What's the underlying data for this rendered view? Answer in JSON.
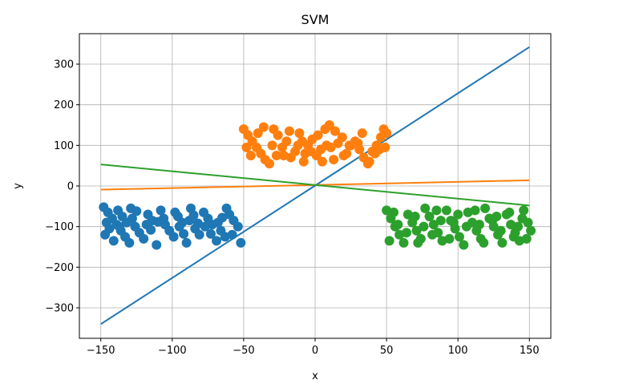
{
  "chart_data": {
    "type": "scatter",
    "title": "SVM",
    "xlabel": "x",
    "ylabel": "y",
    "xlim": [
      -165,
      165
    ],
    "ylim": [
      -375,
      375
    ],
    "x_ticks": [
      -150,
      -100,
      -50,
      0,
      50,
      100,
      150
    ],
    "y_ticks": [
      -300,
      -200,
      -100,
      0,
      100,
      200,
      300
    ],
    "x_tick_labels": [
      "−150",
      "−100",
      "−50",
      "0",
      "50",
      "100",
      "150"
    ],
    "y_tick_labels": [
      "−300",
      "−200",
      "−100",
      "0",
      "100",
      "200",
      "300"
    ],
    "grid": true,
    "colors": [
      "#1f77b4",
      "#ff7f0e",
      "#2ca02c"
    ],
    "scatter_series": [
      {
        "color": "#1f77b4",
        "points": [
          [
            -148,
            -52
          ],
          [
            -145,
            -65
          ],
          [
            -142,
            -80
          ],
          [
            -139,
            -95
          ],
          [
            -136,
            -110
          ],
          [
            -133,
            -125
          ],
          [
            -130,
            -140
          ],
          [
            -147,
            -120
          ],
          [
            -144,
            -105
          ],
          [
            -141,
            -135
          ],
          [
            -138,
            -60
          ],
          [
            -135,
            -75
          ],
          [
            -132,
            -90
          ],
          [
            -129,
            -55
          ],
          [
            -126,
            -100
          ],
          [
            -123,
            -115
          ],
          [
            -120,
            -130
          ],
          [
            -117,
            -70
          ],
          [
            -114,
            -85
          ],
          [
            -111,
            -145
          ],
          [
            -108,
            -60
          ],
          [
            -105,
            -95
          ],
          [
            -102,
            -110
          ],
          [
            -99,
            -125
          ],
          [
            -96,
            -75
          ],
          [
            -93,
            -90
          ],
          [
            -90,
            -140
          ],
          [
            -87,
            -55
          ],
          [
            -84,
            -105
          ],
          [
            -81,
            -120
          ],
          [
            -78,
            -65
          ],
          [
            -75,
            -80
          ],
          [
            -72,
            -95
          ],
          [
            -69,
            -135
          ],
          [
            -66,
            -110
          ],
          [
            -63,
            -125
          ],
          [
            -60,
            -70
          ],
          [
            -57,
            -85
          ],
          [
            -54,
            -100
          ],
          [
            -52,
            -140
          ],
          [
            -146,
            -90
          ],
          [
            -128,
            -80
          ],
          [
            -118,
            -95
          ],
          [
            -106,
            -80
          ],
          [
            -98,
            -65
          ],
          [
            -88,
            -85
          ],
          [
            -77,
            -100
          ],
          [
            -68,
            -90
          ],
          [
            -58,
            -120
          ],
          [
            -115,
            -108
          ],
          [
            -95,
            -100
          ],
          [
            -85,
            -72
          ],
          [
            -73,
            -118
          ],
          [
            -62,
            -55
          ],
          [
            -137,
            -100
          ],
          [
            -125,
            -62
          ],
          [
            -110,
            -88
          ],
          [
            -92,
            -118
          ],
          [
            -82,
            -92
          ],
          [
            -65,
            -78
          ]
        ]
      },
      {
        "color": "#ff7f0e",
        "points": [
          [
            -50,
            140
          ],
          [
            -47,
            125
          ],
          [
            -44,
            110
          ],
          [
            -41,
            95
          ],
          [
            -38,
            80
          ],
          [
            -35,
            65
          ],
          [
            -32,
            55
          ],
          [
            -29,
            140
          ],
          [
            -26,
            125
          ],
          [
            -23,
            95
          ],
          [
            -20,
            110
          ],
          [
            -17,
            70
          ],
          [
            -14,
            85
          ],
          [
            -11,
            130
          ],
          [
            -8,
            60
          ],
          [
            -5,
            100
          ],
          [
            -2,
            115
          ],
          [
            1,
            75
          ],
          [
            4,
            90
          ],
          [
            7,
            140
          ],
          [
            10,
            150
          ],
          [
            13,
            65
          ],
          [
            16,
            105
          ],
          [
            19,
            120
          ],
          [
            22,
            80
          ],
          [
            25,
            100
          ],
          [
            28,
            110
          ],
          [
            31,
            90
          ],
          [
            34,
            70
          ],
          [
            37,
            55
          ],
          [
            40,
            85
          ],
          [
            43,
            100
          ],
          [
            46,
            120
          ],
          [
            48,
            140
          ],
          [
            50,
            130
          ],
          [
            -48,
            95
          ],
          [
            -40,
            130
          ],
          [
            -30,
            100
          ],
          [
            -22,
            75
          ],
          [
            -12,
            100
          ],
          [
            -3,
            85
          ],
          [
            5,
            60
          ],
          [
            14,
            135
          ],
          [
            24,
            100
          ],
          [
            33,
            130
          ],
          [
            38,
            60
          ],
          [
            45,
            90
          ],
          [
            -45,
            75
          ],
          [
            -36,
            145
          ],
          [
            -18,
            135
          ],
          [
            -7,
            80
          ],
          [
            2,
            125
          ],
          [
            11,
            95
          ],
          [
            20,
            75
          ],
          [
            30,
            105
          ],
          [
            42,
            80
          ],
          [
            49,
            95
          ],
          [
            -27,
            75
          ],
          [
            -9,
            110
          ],
          [
            8,
            100
          ]
        ]
      },
      {
        "color": "#2ca02c",
        "points": [
          [
            50,
            -60
          ],
          [
            53,
            -80
          ],
          [
            56,
            -100
          ],
          [
            59,
            -120
          ],
          [
            62,
            -140
          ],
          [
            65,
            -70
          ],
          [
            68,
            -90
          ],
          [
            71,
            -110
          ],
          [
            74,
            -130
          ],
          [
            77,
            -55
          ],
          [
            80,
            -75
          ],
          [
            83,
            -95
          ],
          [
            86,
            -115
          ],
          [
            89,
            -135
          ],
          [
            92,
            -60
          ],
          [
            95,
            -85
          ],
          [
            98,
            -105
          ],
          [
            101,
            -125
          ],
          [
            104,
            -145
          ],
          [
            107,
            -65
          ],
          [
            110,
            -90
          ],
          [
            113,
            -110
          ],
          [
            116,
            -130
          ],
          [
            119,
            -55
          ],
          [
            122,
            -80
          ],
          [
            125,
            -100
          ],
          [
            128,
            -120
          ],
          [
            131,
            -140
          ],
          [
            134,
            -70
          ],
          [
            137,
            -95
          ],
          [
            140,
            -115
          ],
          [
            143,
            -135
          ],
          [
            146,
            -60
          ],
          [
            149,
            -90
          ],
          [
            151,
            -110
          ],
          [
            52,
            -135
          ],
          [
            58,
            -95
          ],
          [
            64,
            -115
          ],
          [
            70,
            -75
          ],
          [
            76,
            -100
          ],
          [
            82,
            -120
          ],
          [
            88,
            -85
          ],
          [
            94,
            -130
          ],
          [
            100,
            -70
          ],
          [
            106,
            -100
          ],
          [
            112,
            -60
          ],
          [
            118,
            -140
          ],
          [
            124,
            -85
          ],
          [
            130,
            -110
          ],
          [
            136,
            -65
          ],
          [
            142,
            -100
          ],
          [
            148,
            -130
          ],
          [
            55,
            -65
          ],
          [
            72,
            -140
          ],
          [
            85,
            -60
          ],
          [
            97,
            -90
          ],
          [
            115,
            -95
          ],
          [
            127,
            -75
          ],
          [
            139,
            -125
          ],
          [
            145,
            -80
          ]
        ]
      }
    ],
    "line_series": [
      {
        "color": "#1f77b4",
        "x": [
          -150,
          150
        ],
        "y": [
          -340,
          342
        ]
      },
      {
        "color": "#ff7f0e",
        "x": [
          -150,
          150
        ],
        "y": [
          -9,
          14
        ]
      },
      {
        "color": "#2ca02c",
        "x": [
          -150,
          150
        ],
        "y": [
          53,
          -48
        ]
      }
    ]
  }
}
